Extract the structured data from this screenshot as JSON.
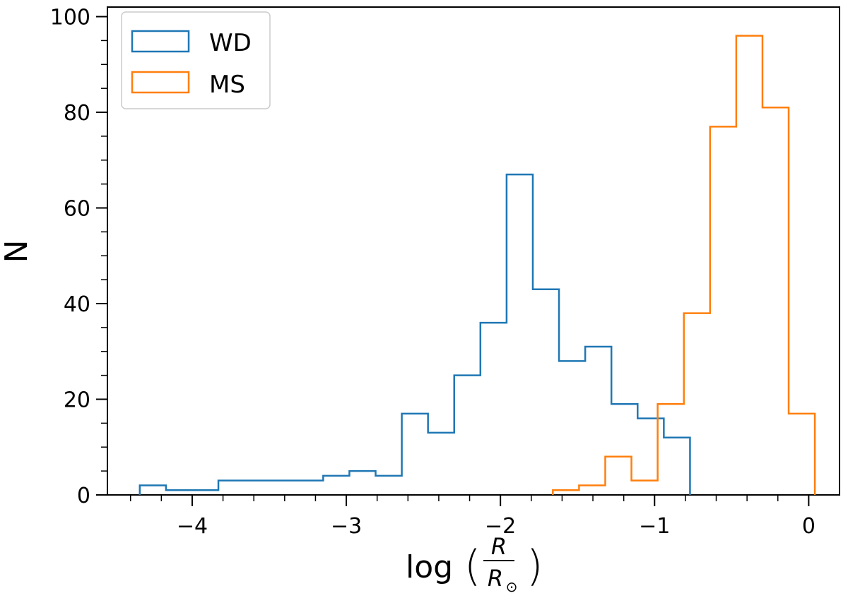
{
  "chart_data": {
    "type": "histogram",
    "xlabel": "log",
    "xlabel_fraction": {
      "numerator": "R",
      "denominator": "R",
      "subscript": "⊙"
    },
    "ylabel": "N",
    "xlim": [
      -4.55,
      0.2
    ],
    "ylim": [
      0,
      102
    ],
    "x_ticks": [
      -4,
      -3,
      -2,
      -1,
      0
    ],
    "x_tick_labels": [
      "−4",
      "−3",
      "−2",
      "−1",
      "0"
    ],
    "y_ticks": [
      0,
      20,
      40,
      60,
      80,
      100
    ],
    "y_tick_labels": [
      "0",
      "20",
      "40",
      "60",
      "80",
      "100"
    ],
    "legend_position": "top-left",
    "grid": false,
    "series": [
      {
        "name": "WD",
        "color": "#1f77b4",
        "edges": [
          -4.34,
          -4.17,
          -4.0,
          -3.83,
          -3.66,
          -3.49,
          -3.32,
          -3.15,
          -2.98,
          -2.81,
          -2.64,
          -2.47,
          -2.3,
          -2.13,
          -1.96,
          -1.79,
          -1.62,
          -1.45,
          -1.28,
          -1.11,
          -0.94,
          -0.77
        ],
        "counts": [
          2,
          1,
          1,
          3,
          3,
          3,
          3,
          4,
          5,
          4,
          17,
          13,
          25,
          36,
          67,
          43,
          28,
          31,
          19,
          16,
          12
        ]
      },
      {
        "name": "MS",
        "color": "#ff7f0e",
        "edges": [
          -1.66,
          -1.49,
          -1.32,
          -1.15,
          -0.98,
          -0.81,
          -0.64,
          -0.47,
          -0.3,
          -0.13,
          0.04
        ],
        "counts": [
          1,
          2,
          8,
          3,
          19,
          38,
          77,
          96,
          81,
          17
        ]
      }
    ]
  }
}
